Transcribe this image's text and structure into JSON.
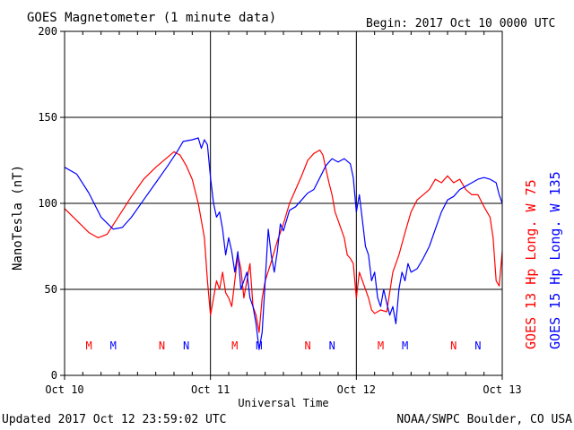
{
  "header": {
    "title": "GOES Magnetometer (1 minute data)",
    "begin": "Begin:  2017 Oct 10 0000 UTC"
  },
  "footer": {
    "updated": "Updated 2017 Oct 12 23:59:02 UTC",
    "credit": "NOAA/SWPC Boulder, CO USA"
  },
  "colors": {
    "goes13": "#ff0000",
    "goes15": "#0000ff",
    "axes": "#000000",
    "background": "#ffffff"
  },
  "chart_data": {
    "type": "line",
    "title": "GOES Magnetometer (1 minute data)",
    "xlabel": "Universal Time",
    "ylabel": "NanoTesla (nT)",
    "xlim": [
      0,
      72
    ],
    "ylim": [
      0,
      200
    ],
    "x_unit": "hours since 2017 Oct 10 0000 UTC",
    "grid": true,
    "x_ticks": [
      {
        "value": 0,
        "label": "Oct 10"
      },
      {
        "value": 24,
        "label": "Oct 11"
      },
      {
        "value": 48,
        "label": "Oct 12"
      },
      {
        "value": 72,
        "label": "Oct 13"
      }
    ],
    "y_ticks": [
      0,
      50,
      100,
      150,
      200
    ],
    "legend": [
      {
        "text": "GOES 13 Hp  Long. W 75",
        "color": "#ff0000"
      },
      {
        "text": "GOES 15 Hp  Long. W 135",
        "color": "#0000ff"
      }
    ],
    "markers": [
      {
        "label": "M",
        "x": 4.0,
        "series": "GOES 13"
      },
      {
        "label": "M",
        "x": 8.0,
        "series": "GOES 15"
      },
      {
        "label": "N",
        "x": 16.0,
        "series": "GOES 13"
      },
      {
        "label": "N",
        "x": 20.0,
        "series": "GOES 15"
      },
      {
        "label": "M",
        "x": 28.0,
        "series": "GOES 13"
      },
      {
        "label": "M",
        "x": 32.0,
        "series": "GOES 15"
      },
      {
        "label": "N",
        "x": 40.0,
        "series": "GOES 13"
      },
      {
        "label": "N",
        "x": 44.0,
        "series": "GOES 15"
      },
      {
        "label": "M",
        "x": 52.0,
        "series": "GOES 13"
      },
      {
        "label": "M",
        "x": 56.0,
        "series": "GOES 15"
      },
      {
        "label": "N",
        "x": 64.0,
        "series": "GOES 13"
      },
      {
        "label": "N",
        "x": 68.0,
        "series": "GOES 15"
      }
    ],
    "series": [
      {
        "name": "GOES 13 Hp  Long. W 75",
        "color": "#ff0000",
        "points": [
          [
            0,
            97
          ],
          [
            2,
            90
          ],
          [
            4,
            83
          ],
          [
            5.5,
            80
          ],
          [
            7,
            82
          ],
          [
            9,
            93
          ],
          [
            11,
            104
          ],
          [
            13,
            114
          ],
          [
            15,
            121
          ],
          [
            17,
            127
          ],
          [
            18,
            130
          ],
          [
            19,
            128
          ],
          [
            20,
            122
          ],
          [
            21,
            114
          ],
          [
            22,
            100
          ],
          [
            23,
            80
          ],
          [
            23.5,
            55
          ],
          [
            24,
            35
          ],
          [
            24.5,
            45
          ],
          [
            25,
            55
          ],
          [
            25.5,
            50
          ],
          [
            26,
            60
          ],
          [
            26.5,
            48
          ],
          [
            27,
            45
          ],
          [
            27.5,
            40
          ],
          [
            28,
            55
          ],
          [
            28.5,
            70
          ],
          [
            29,
            62
          ],
          [
            29.5,
            45
          ],
          [
            30,
            55
          ],
          [
            30.5,
            65
          ],
          [
            31,
            40
          ],
          [
            31.5,
            35
          ],
          [
            32,
            25
          ],
          [
            32.5,
            45
          ],
          [
            33,
            55
          ],
          [
            34,
            66
          ],
          [
            35,
            78
          ],
          [
            36,
            88
          ],
          [
            37,
            100
          ],
          [
            38,
            108
          ],
          [
            39,
            116
          ],
          [
            40,
            125
          ],
          [
            41,
            129
          ],
          [
            42,
            131
          ],
          [
            42.5,
            128
          ],
          [
            43,
            120
          ],
          [
            43.5,
            112
          ],
          [
            44,
            105
          ],
          [
            44.5,
            95
          ],
          [
            45,
            90
          ],
          [
            46,
            80
          ],
          [
            46.5,
            70
          ],
          [
            47,
            68
          ],
          [
            47.5,
            65
          ],
          [
            48,
            45
          ],
          [
            48.5,
            60
          ],
          [
            49,
            55
          ],
          [
            49.5,
            50
          ],
          [
            50,
            45
          ],
          [
            50.5,
            38
          ],
          [
            51,
            36
          ],
          [
            52,
            38
          ],
          [
            53,
            37
          ],
          [
            54,
            60
          ],
          [
            55,
            70
          ],
          [
            56,
            83
          ],
          [
            57,
            95
          ],
          [
            58,
            102
          ],
          [
            59,
            105
          ],
          [
            60,
            108
          ],
          [
            61,
            114
          ],
          [
            62,
            112
          ],
          [
            63,
            116
          ],
          [
            64,
            112
          ],
          [
            65,
            114
          ],
          [
            66,
            108
          ],
          [
            67,
            105
          ],
          [
            68,
            105
          ],
          [
            69,
            98
          ],
          [
            70,
            92
          ],
          [
            70.5,
            80
          ],
          [
            71,
            55
          ],
          [
            71.5,
            52
          ],
          [
            72,
            72
          ]
        ]
      },
      {
        "name": "GOES 15 Hp  Long. W 135",
        "color": "#0000ff",
        "points": [
          [
            0,
            121
          ],
          [
            2,
            117
          ],
          [
            4,
            106
          ],
          [
            6,
            92
          ],
          [
            8,
            85
          ],
          [
            9.5,
            86
          ],
          [
            11,
            92
          ],
          [
            13,
            102
          ],
          [
            15,
            112
          ],
          [
            17,
            122
          ],
          [
            18.5,
            130
          ],
          [
            19.5,
            136
          ],
          [
            21,
            137
          ],
          [
            22,
            138
          ],
          [
            22.5,
            132
          ],
          [
            23,
            137
          ],
          [
            23.5,
            134
          ],
          [
            24,
            115
          ],
          [
            24.5,
            100
          ],
          [
            25,
            92
          ],
          [
            25.5,
            95
          ],
          [
            26,
            85
          ],
          [
            26.5,
            70
          ],
          [
            27,
            80
          ],
          [
            27.5,
            72
          ],
          [
            28,
            60
          ],
          [
            28.5,
            72
          ],
          [
            29,
            50
          ],
          [
            29.5,
            55
          ],
          [
            30,
            60
          ],
          [
            30.5,
            45
          ],
          [
            31,
            40
          ],
          [
            31.5,
            30
          ],
          [
            32,
            15
          ],
          [
            32.5,
            25
          ],
          [
            33,
            55
          ],
          [
            33.5,
            85
          ],
          [
            34,
            70
          ],
          [
            34.5,
            60
          ],
          [
            35,
            72
          ],
          [
            35.5,
            88
          ],
          [
            36,
            84
          ],
          [
            37,
            96
          ],
          [
            38,
            98
          ],
          [
            39,
            102
          ],
          [
            40,
            106
          ],
          [
            41,
            108
          ],
          [
            42,
            115
          ],
          [
            43,
            122
          ],
          [
            44,
            126
          ],
          [
            45,
            124
          ],
          [
            46,
            126
          ],
          [
            47,
            123
          ],
          [
            47.5,
            115
          ],
          [
            48,
            95
          ],
          [
            48.5,
            105
          ],
          [
            49,
            90
          ],
          [
            49.5,
            75
          ],
          [
            50,
            70
          ],
          [
            50.5,
            55
          ],
          [
            51,
            60
          ],
          [
            51.5,
            45
          ],
          [
            52,
            40
          ],
          [
            52.5,
            50
          ],
          [
            53,
            42
          ],
          [
            53.5,
            35
          ],
          [
            54,
            40
          ],
          [
            54.5,
            30
          ],
          [
            55,
            50
          ],
          [
            55.5,
            60
          ],
          [
            56,
            55
          ],
          [
            56.5,
            65
          ],
          [
            57,
            60
          ],
          [
            58,
            62
          ],
          [
            59,
            68
          ],
          [
            60,
            75
          ],
          [
            61,
            85
          ],
          [
            62,
            95
          ],
          [
            63,
            102
          ],
          [
            64,
            104
          ],
          [
            65,
            108
          ],
          [
            66,
            110
          ],
          [
            67,
            112
          ],
          [
            68,
            114
          ],
          [
            69,
            115
          ],
          [
            70,
            114
          ],
          [
            71,
            112
          ],
          [
            71.5,
            105
          ],
          [
            72,
            100
          ]
        ]
      }
    ]
  }
}
